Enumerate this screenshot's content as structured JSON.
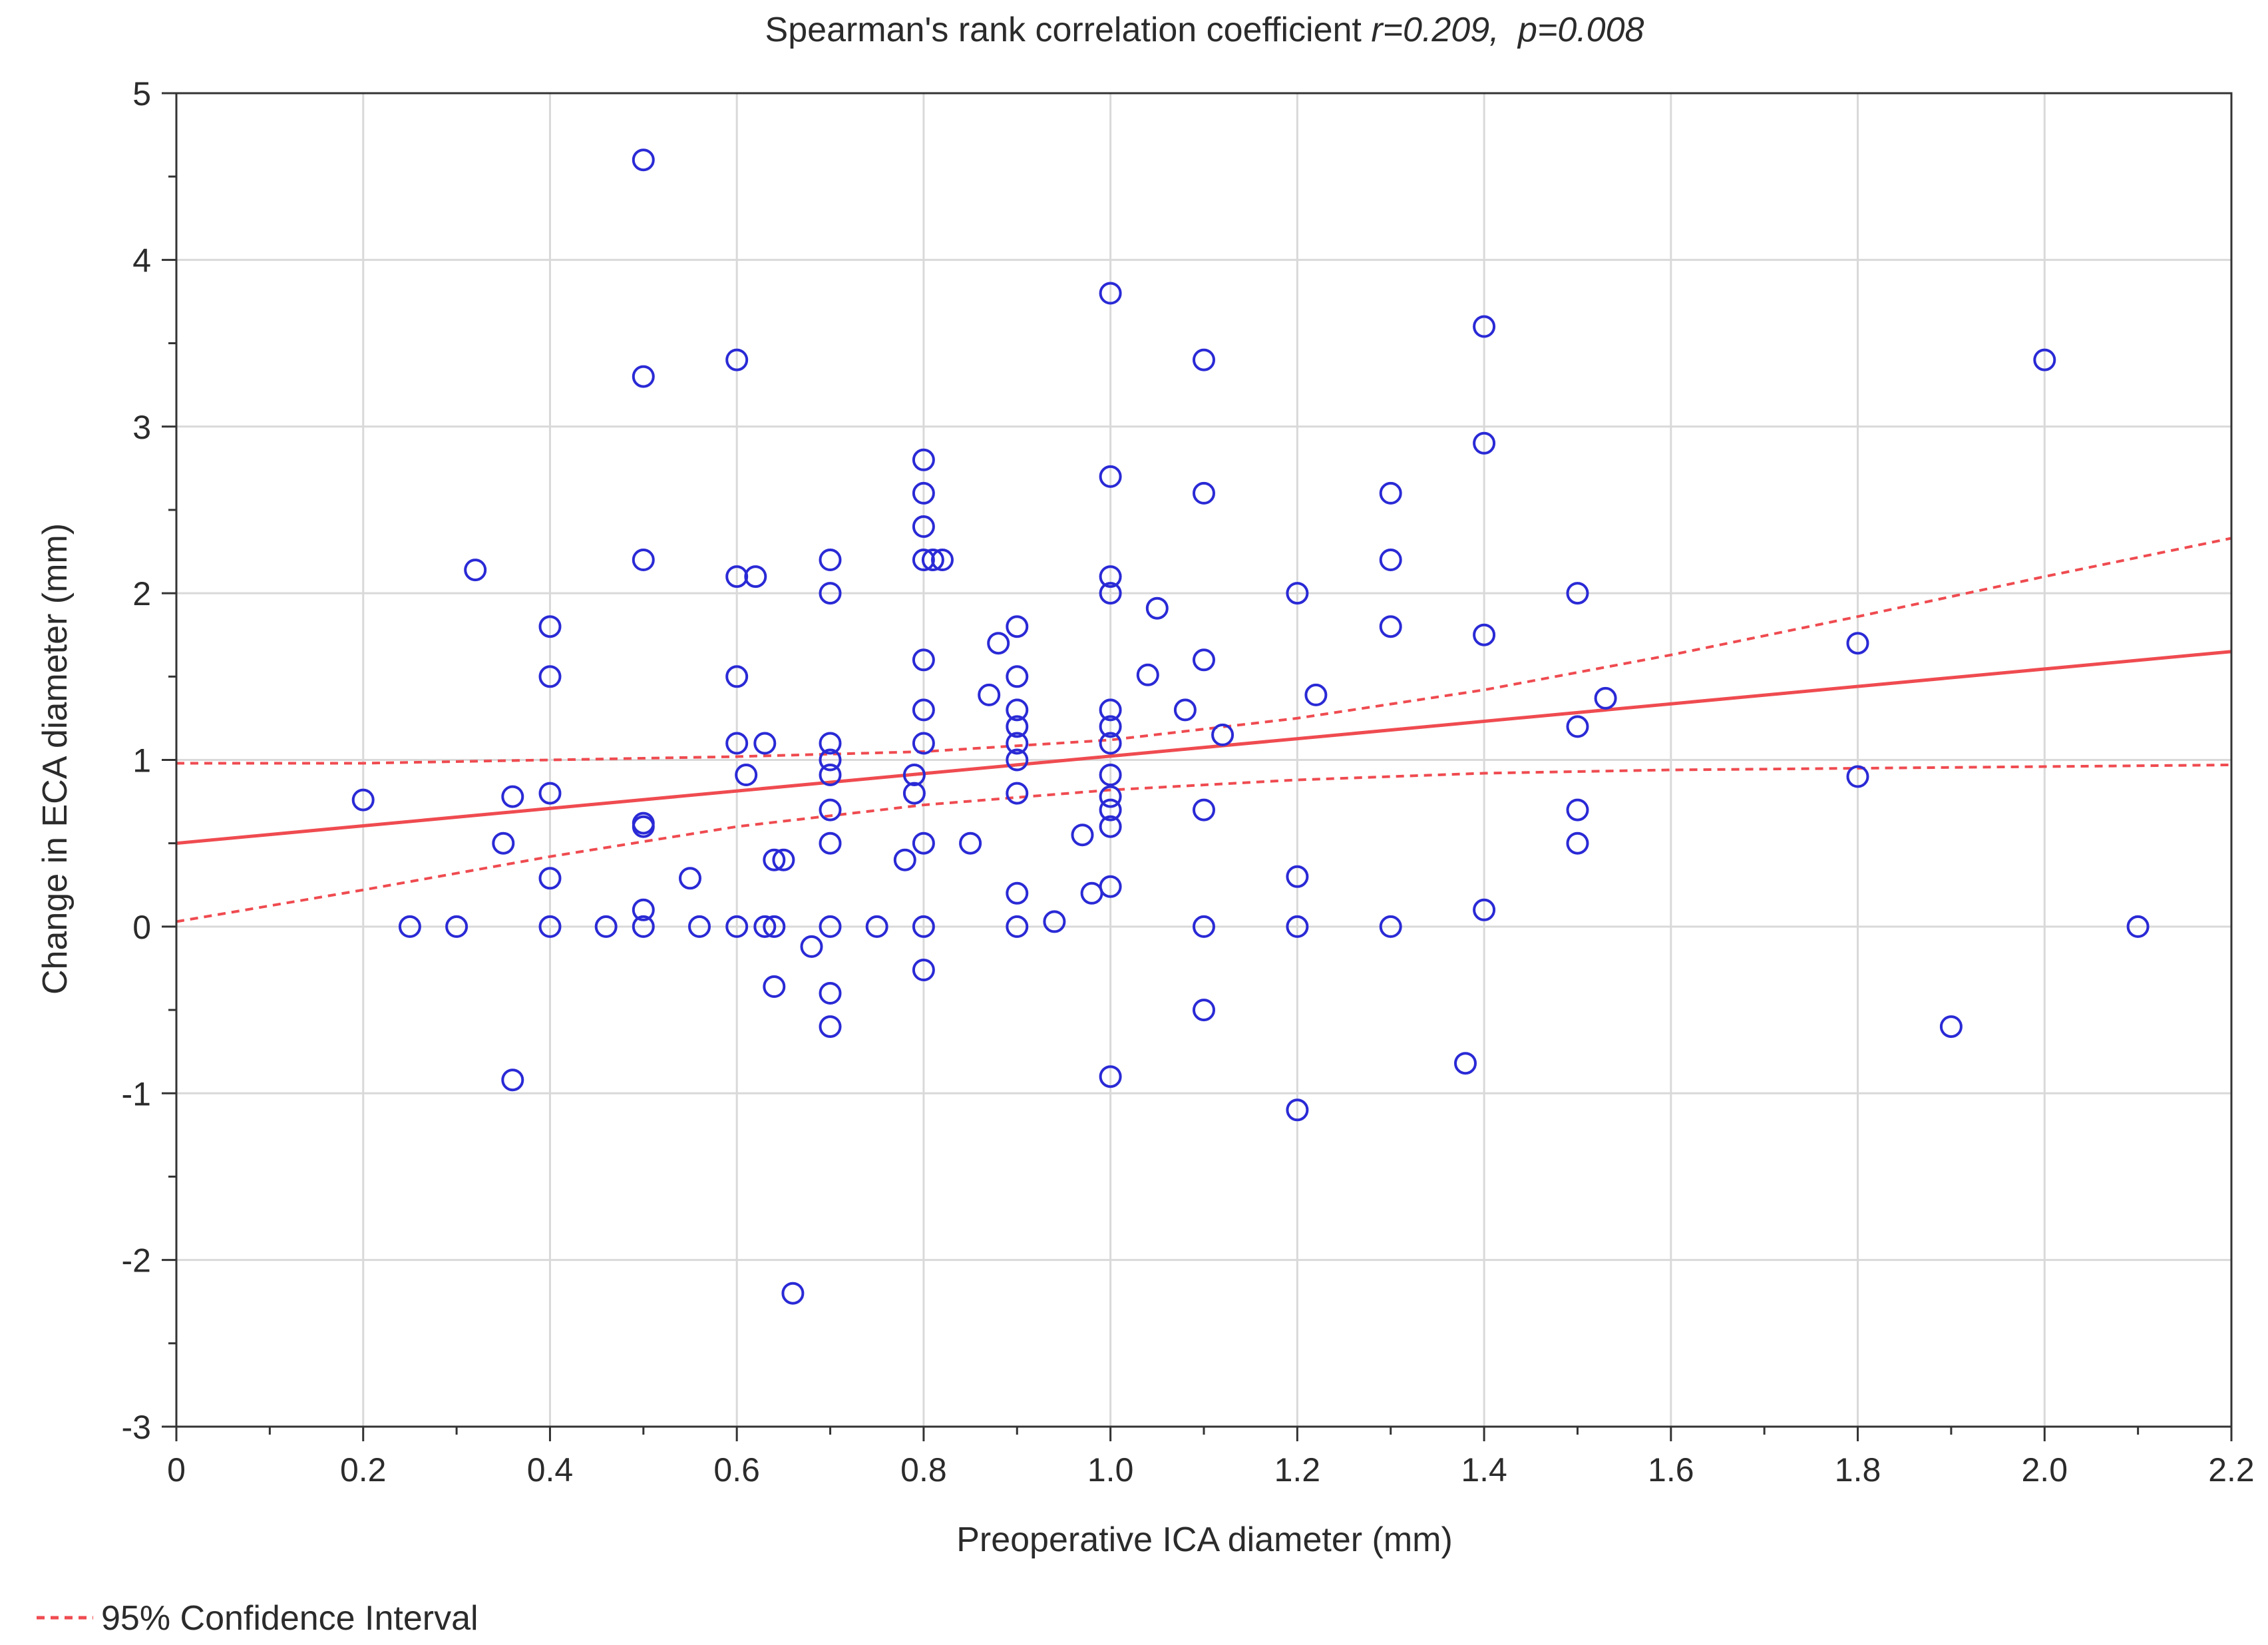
{
  "chart_data": {
    "type": "scatter",
    "title_prefix": "Spearman's rank correlation coefficient ",
    "title_stat_r": "r=0.209,",
    "title_stat_p": "p=0.008",
    "xlabel": "Preoperative ICA diameter (mm)",
    "ylabel": "Change in ECA diameter (mm)",
    "xlim": [
      0,
      2.2
    ],
    "ylim": [
      -3,
      5
    ],
    "x_tick_labels": [
      "0",
      "0.2",
      "0.4",
      "0.6",
      "0.8",
      "1.0",
      "1.2",
      "1.4",
      "1.6",
      "1.8",
      "2.0",
      "2.2"
    ],
    "y_tick_labels": [
      "-3",
      "-2",
      "-1",
      "0",
      "1",
      "2",
      "3",
      "4",
      "5"
    ],
    "grid": true,
    "colors": {
      "points": "#2a2ad6",
      "fit": "#ef4b50",
      "grid": "#d9d9d9",
      "axis": "#333333"
    },
    "fit_line": {
      "x": [
        0,
        2.2
      ],
      "y": [
        0.5,
        1.65
      ]
    },
    "ci_upper": {
      "x": [
        0,
        0.2,
        0.4,
        0.6,
        0.8,
        1.0,
        1.2,
        1.4,
        1.6,
        1.8,
        2.0,
        2.2
      ],
      "y": [
        0.98,
        0.98,
        1.0,
        1.02,
        1.05,
        1.12,
        1.25,
        1.42,
        1.63,
        1.86,
        2.1,
        2.33
      ]
    },
    "ci_lower": {
      "x": [
        0,
        0.2,
        0.4,
        0.6,
        0.8,
        1.0,
        1.2,
        1.4,
        1.6,
        1.8,
        2.0,
        2.2
      ],
      "y": [
        0.03,
        0.22,
        0.42,
        0.6,
        0.73,
        0.82,
        0.88,
        0.92,
        0.94,
        0.95,
        0.96,
        0.97
      ]
    },
    "legend": {
      "label": "95% Confidence Interval",
      "placement": "bottom-left"
    },
    "points": [
      [
        0.2,
        0.76
      ],
      [
        0.25,
        0
      ],
      [
        0.3,
        0
      ],
      [
        0.32,
        2.14
      ],
      [
        0.35,
        0.5
      ],
      [
        0.36,
        0.78
      ],
      [
        0.36,
        -0.92
      ],
      [
        0.4,
        1.8
      ],
      [
        0.4,
        1.5
      ],
      [
        0.4,
        0.8
      ],
      [
        0.4,
        0.29
      ],
      [
        0.4,
        0
      ],
      [
        0.46,
        0
      ],
      [
        0.5,
        4.6
      ],
      [
        0.5,
        3.3
      ],
      [
        0.5,
        2.2
      ],
      [
        0.5,
        0.62
      ],
      [
        0.5,
        0.6
      ],
      [
        0.5,
        0.1
      ],
      [
        0.5,
        0
      ],
      [
        0.55,
        0.29
      ],
      [
        0.56,
        0
      ],
      [
        0.6,
        3.4
      ],
      [
        0.6,
        2.1
      ],
      [
        0.6,
        1.5
      ],
      [
        0.6,
        1.1
      ],
      [
        0.6,
        0
      ],
      [
        0.61,
        0.91
      ],
      [
        0.62,
        2.1
      ],
      [
        0.63,
        1.1
      ],
      [
        0.63,
        0
      ],
      [
        0.64,
        0
      ],
      [
        0.64,
        0.4
      ],
      [
        0.64,
        -0.36
      ],
      [
        0.65,
        0.4
      ],
      [
        0.66,
        -2.2
      ],
      [
        0.68,
        -0.12
      ],
      [
        0.7,
        2.2
      ],
      [
        0.7,
        2.0
      ],
      [
        0.7,
        1.1
      ],
      [
        0.7,
        1.0
      ],
      [
        0.7,
        0.91
      ],
      [
        0.7,
        0.7
      ],
      [
        0.7,
        0.5
      ],
      [
        0.7,
        0
      ],
      [
        0.7,
        -0.4
      ],
      [
        0.7,
        -0.6
      ],
      [
        0.75,
        0
      ],
      [
        0.78,
        0.4
      ],
      [
        0.79,
        0.91
      ],
      [
        0.79,
        0.8
      ],
      [
        0.8,
        2.8
      ],
      [
        0.8,
        2.6
      ],
      [
        0.8,
        2.4
      ],
      [
        0.8,
        2.2
      ],
      [
        0.8,
        1.6
      ],
      [
        0.8,
        1.3
      ],
      [
        0.8,
        1.1
      ],
      [
        0.8,
        0.5
      ],
      [
        0.8,
        0
      ],
      [
        0.8,
        -0.26
      ],
      [
        0.81,
        2.2
      ],
      [
        0.82,
        2.2
      ],
      [
        0.85,
        0.5
      ],
      [
        0.87,
        1.39
      ],
      [
        0.88,
        1.7
      ],
      [
        0.9,
        1.8
      ],
      [
        0.9,
        1.5
      ],
      [
        0.9,
        1.3
      ],
      [
        0.9,
        1.2
      ],
      [
        0.9,
        1.1
      ],
      [
        0.9,
        1.0
      ],
      [
        0.9,
        0.8
      ],
      [
        0.9,
        0.2
      ],
      [
        0.9,
        0
      ],
      [
        0.94,
        0.03
      ],
      [
        0.97,
        0.55
      ],
      [
        0.98,
        0.2
      ],
      [
        1.0,
        3.8
      ],
      [
        1.0,
        2.7
      ],
      [
        1.0,
        2.1
      ],
      [
        1.0,
        2.0
      ],
      [
        1.0,
        1.3
      ],
      [
        1.0,
        1.2
      ],
      [
        1.0,
        1.1
      ],
      [
        1.0,
        0.91
      ],
      [
        1.0,
        0.78
      ],
      [
        1.0,
        0.7
      ],
      [
        1.0,
        0.6
      ],
      [
        1.0,
        0.24
      ],
      [
        1.0,
        -0.9
      ],
      [
        1.04,
        1.51
      ],
      [
        1.05,
        1.91
      ],
      [
        1.08,
        1.3
      ],
      [
        1.1,
        3.4
      ],
      [
        1.1,
        2.6
      ],
      [
        1.1,
        1.6
      ],
      [
        1.1,
        0.7
      ],
      [
        1.1,
        0
      ],
      [
        1.1,
        -0.5
      ],
      [
        1.12,
        1.15
      ],
      [
        1.2,
        2.0
      ],
      [
        1.2,
        0.3
      ],
      [
        1.2,
        0
      ],
      [
        1.2,
        -1.1
      ],
      [
        1.22,
        1.39
      ],
      [
        1.3,
        2.6
      ],
      [
        1.3,
        2.2
      ],
      [
        1.3,
        1.8
      ],
      [
        1.3,
        0
      ],
      [
        1.38,
        -0.82
      ],
      [
        1.4,
        3.6
      ],
      [
        1.4,
        2.9
      ],
      [
        1.4,
        1.75
      ],
      [
        1.4,
        0.1
      ],
      [
        1.5,
        2.0
      ],
      [
        1.5,
        1.2
      ],
      [
        1.5,
        0.7
      ],
      [
        1.5,
        0.5
      ],
      [
        1.53,
        1.37
      ],
      [
        1.8,
        1.7
      ],
      [
        1.8,
        0.9
      ],
      [
        1.9,
        -0.6
      ],
      [
        2.0,
        3.4
      ],
      [
        2.1,
        0
      ]
    ]
  }
}
